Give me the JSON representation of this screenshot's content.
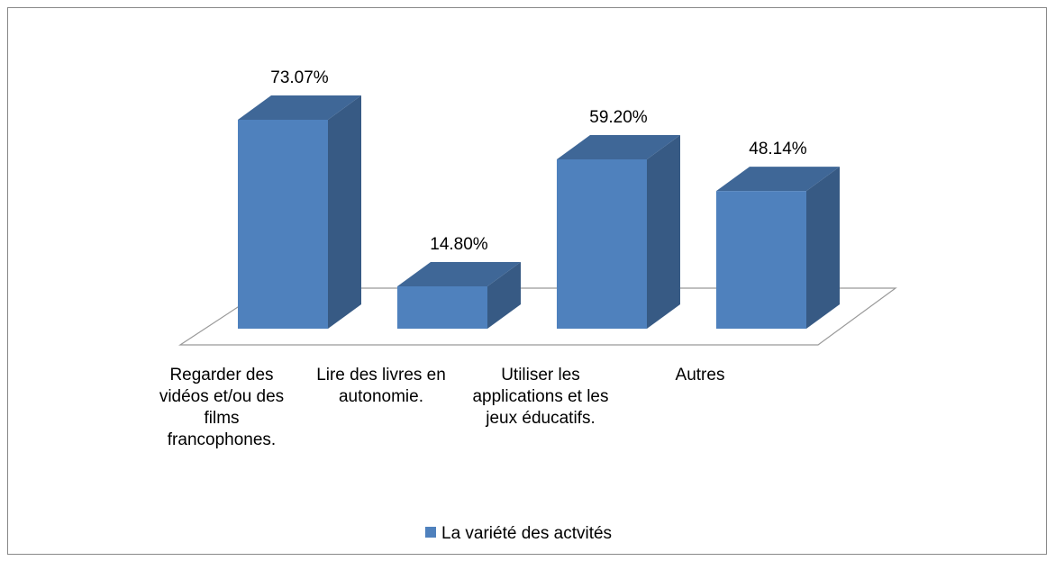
{
  "chart_data": {
    "type": "bar3d",
    "categories": [
      "Regarder des vidéos et/ou des films francophones.",
      "Lire des livres en autonomie.",
      "Utiliser les applications et les jeux éducatifs.",
      "Autres"
    ],
    "series": [
      {
        "name": "La variété des actvités",
        "color": "#4f81bd",
        "values": [
          73.07,
          14.8,
          59.2,
          48.14
        ],
        "value_labels": [
          "73.07%",
          "14.80%",
          "59.20%",
          "48.14%"
        ]
      }
    ],
    "legend": "bottom"
  }
}
